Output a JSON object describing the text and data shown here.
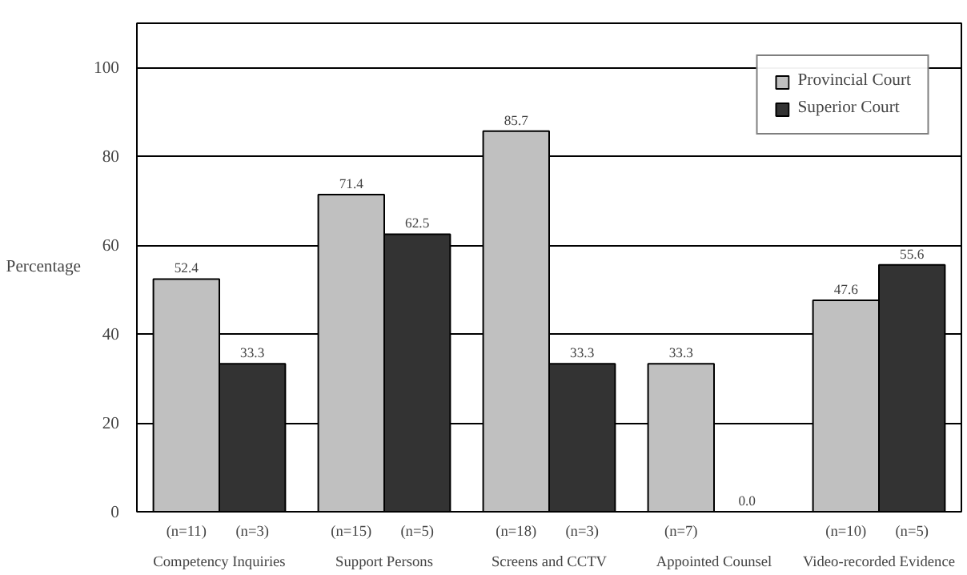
{
  "chart_data": {
    "type": "bar",
    "ylabel": "Percentage",
    "categories": [
      "Competency Inquiries",
      "Support Persons",
      "Screens and CCTV",
      "Appointed Counsel",
      "Video-recorded Evidence"
    ],
    "series": [
      {
        "name": "Provincial Court",
        "color": "#c0c0c0",
        "values": [
          52.4,
          71.4,
          85.7,
          33.3,
          47.6
        ],
        "value_labels": [
          "52.4",
          "71.4",
          "85.7",
          "33.3",
          "47.6"
        ]
      },
      {
        "name": "Superior Court",
        "color": "#333333",
        "values": [
          33.3,
          62.5,
          33.3,
          0.0,
          55.6
        ],
        "value_labels": [
          "33.3",
          "62.5",
          "33.3",
          "0.0",
          "55.6"
        ]
      }
    ],
    "ylim": [
      0,
      110
    ],
    "yticks": [
      0,
      20,
      40,
      60,
      80,
      100
    ],
    "grid": "y",
    "legend": "top right",
    "annotations": [
      "(n=11)",
      "(n=3)",
      "(n=15)",
      "(n=5)",
      "(n=18)",
      "(n=3)",
      "(n=7)",
      "(n=10)",
      "(n=5)"
    ]
  }
}
